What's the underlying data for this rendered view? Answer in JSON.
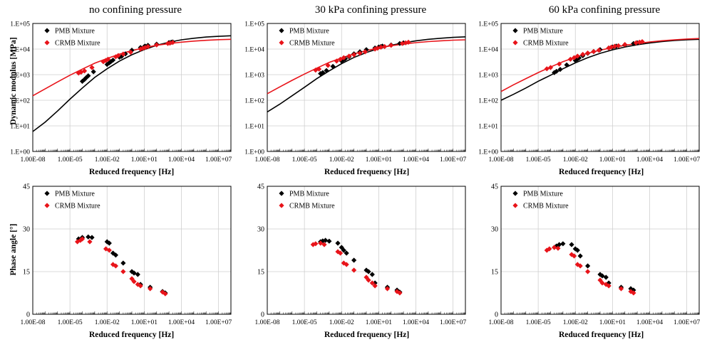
{
  "columns": [
    "no confining pressure",
    "30 kPa confining pressure",
    "60 kPa confining pressure"
  ],
  "legend": {
    "pmb": "PMB Mixture",
    "crmb": "CRMB Mixture"
  },
  "colors": {
    "pmb": "#000000",
    "crmb": "#e8141a",
    "grid": "#cfcfcf",
    "axis": "#000000"
  },
  "axes": {
    "xlabel": "Reduced frequency [Hz]",
    "ylabel_modulus": "Dynamic modulus [MPa]",
    "ylabel_phase": "Phase angle [°]",
    "x_ticks": [
      "1.00E-08",
      "1.00E-05",
      "1.00E-02",
      "1.00E+01",
      "1.00E+04",
      "1.00E+07"
    ],
    "y_ticks_modulus": [
      "1.E+00",
      "1.E+01",
      "1.E+02",
      "1.E+03",
      "1.E+04",
      "1.E+05"
    ],
    "y_ticks_phase": [
      "0",
      "15",
      "30",
      "45"
    ]
  },
  "chart_data": [
    {
      "type": "line",
      "title": "no confining pressure",
      "xlabel": "Reduced frequency [Hz]",
      "ylabel": "Dynamic modulus [MPa]",
      "xscale": "log",
      "yscale": "log",
      "xlim": [
        1e-08,
        100000000.0
      ],
      "ylim": [
        1,
        100000
      ],
      "grid": true,
      "legend_position": "top-left",
      "series": [
        {
          "name": "PMB Mixture",
          "kind": "curve",
          "x": [
            1e-08,
            1e-07,
            1e-06,
            1e-05,
            0.0001,
            0.001,
            0.01,
            0.1,
            1,
            10,
            100,
            1000,
            10000,
            100000,
            1000000,
            10000000,
            100000000
          ],
          "y": [
            6,
            14,
            38,
            110,
            300,
            780,
            1700,
            3400,
            6000,
            9500,
            14000,
            18500,
            23000,
            26500,
            29500,
            31500,
            33000
          ]
        },
        {
          "name": "CRMB Mixture",
          "kind": "curve",
          "x": [
            1e-08,
            1e-07,
            1e-06,
            1e-05,
            0.0001,
            0.001,
            0.01,
            0.1,
            1,
            10,
            100,
            1000,
            10000,
            100000,
            1000000,
            10000000,
            100000000
          ],
          "y": [
            150,
            280,
            520,
            950,
            1650,
            2800,
            4300,
            6300,
            8700,
            11300,
            14000,
            16400,
            18600,
            20500,
            22000,
            23200,
            24000
          ]
        },
        {
          "name": "PMB Mixture",
          "kind": "points",
          "x": [
            0.0001,
            0.00015,
            0.0002,
            0.0003,
            0.0008,
            0.01,
            0.015,
            0.02,
            0.03,
            0.1,
            0.15,
            0.3,
            1,
            5,
            10,
            12,
            20,
            100,
            1000,
            1500,
            2000
          ],
          "y": [
            550,
            650,
            750,
            900,
            1300,
            2500,
            2900,
            3200,
            3700,
            4800,
            5200,
            6500,
            9000,
            11500,
            12500,
            13000,
            14000,
            15500,
            18000,
            18500,
            19000
          ]
        },
        {
          "name": "CRMB Mixture",
          "kind": "points",
          "x": [
            5e-05,
            8e-05,
            0.00015,
            0.0006,
            0.005,
            0.008,
            0.012,
            0.05,
            0.08,
            0.2,
            0.8,
            5,
            8,
            12,
            20,
            100,
            800,
            1200,
            2000
          ],
          "y": [
            1150,
            1250,
            1400,
            1900,
            3200,
            3600,
            4000,
            5000,
            5600,
            6400,
            7500,
            10000,
            10800,
            11500,
            12500,
            14500,
            16500,
            17000,
            18000
          ]
        }
      ]
    },
    {
      "type": "line",
      "title": "30 kPa confining pressure",
      "xlabel": "Reduced frequency [Hz]",
      "ylabel": "",
      "xscale": "log",
      "yscale": "log",
      "xlim": [
        1e-08,
        100000000.0
      ],
      "ylim": [
        1,
        100000
      ],
      "grid": true,
      "legend_position": "top-left",
      "series": [
        {
          "name": "PMB Mixture",
          "kind": "curve",
          "x": [
            1e-08,
            1e-07,
            1e-06,
            1e-05,
            0.0001,
            0.001,
            0.01,
            0.1,
            1,
            10,
            100,
            1000,
            10000,
            100000,
            1000000,
            10000000,
            100000000
          ],
          "y": [
            35,
            70,
            150,
            320,
            700,
            1400,
            2700,
            4700,
            7300,
            10500,
            14000,
            17500,
            21000,
            24000,
            26500,
            28500,
            30000
          ]
        },
        {
          "name": "CRMB Mixture",
          "kind": "curve",
          "x": [
            1e-08,
            1e-07,
            1e-06,
            1e-05,
            0.0001,
            0.001,
            0.01,
            0.1,
            1,
            10,
            100,
            1000,
            10000,
            100000,
            1000000,
            10000000,
            100000000
          ],
          "y": [
            180,
            330,
            600,
            1050,
            1800,
            3000,
            4500,
            6500,
            8700,
            11000,
            13500,
            15700,
            17800,
            19600,
            21000,
            22200,
            23000
          ]
        },
        {
          "name": "PMB Mixture",
          "kind": "points",
          "x": [
            0.0002,
            0.0003,
            0.0006,
            0.002,
            0.01,
            0.015,
            0.02,
            0.04,
            0.1,
            0.3,
            1,
            5,
            10,
            15,
            20,
            100,
            500,
            1000
          ],
          "y": [
            1100,
            1200,
            1450,
            2100,
            3400,
            3900,
            4200,
            5000,
            6500,
            7800,
            9500,
            11000,
            12000,
            12500,
            13000,
            14500,
            16500,
            17500
          ]
        },
        {
          "name": "CRMB Mixture",
          "kind": "points",
          "x": [
            8e-05,
            0.00015,
            0.0008,
            0.004,
            0.008,
            0.015,
            0.04,
            0.1,
            0.3,
            0.8,
            5,
            8,
            15,
            30,
            100,
            800,
            1500,
            2500
          ],
          "y": [
            1500,
            1650,
            2300,
            3400,
            4000,
            4600,
            5300,
            6000,
            6900,
            7800,
            10000,
            10800,
            11800,
            12500,
            14000,
            16500,
            17500,
            18500
          ]
        }
      ]
    },
    {
      "type": "line",
      "title": "60 kPa confining pressure",
      "xlabel": "Reduced frequency [Hz]",
      "ylabel": "",
      "xscale": "log",
      "yscale": "log",
      "xlim": [
        1e-08,
        100000000.0
      ],
      "ylim": [
        1,
        100000
      ],
      "grid": true,
      "legend_position": "top-left",
      "series": [
        {
          "name": "PMB Mixture",
          "kind": "curve",
          "x": [
            1e-08,
            1e-07,
            1e-06,
            1e-05,
            0.0001,
            0.001,
            0.01,
            0.1,
            1,
            10,
            100,
            1000,
            10000,
            100000,
            1000000,
            10000000,
            100000000
          ],
          "y": [
            100,
            170,
            300,
            550,
            950,
            1700,
            2900,
            4600,
            6800,
            9300,
            12000,
            14700,
            17300,
            19600,
            21500,
            23000,
            24000
          ]
        },
        {
          "name": "CRMB Mixture",
          "kind": "curve",
          "x": [
            1e-08,
            1e-07,
            1e-06,
            1e-05,
            0.0001,
            0.001,
            0.01,
            0.1,
            1,
            10,
            100,
            1000,
            10000,
            100000,
            1000000,
            10000000,
            100000000
          ],
          "y": [
            220,
            400,
            700,
            1200,
            2000,
            3200,
            4800,
            6800,
            9000,
            11500,
            14000,
            16500,
            19000,
            21200,
            23000,
            24600,
            25800
          ]
        },
        {
          "name": "PMB Mixture",
          "kind": "points",
          "x": [
            0.0002,
            0.0003,
            0.0006,
            0.002,
            0.01,
            0.015,
            0.02,
            0.04,
            0.1,
            0.3,
            1,
            5,
            10,
            15,
            20,
            100,
            500,
            1000
          ],
          "y": [
            1200,
            1350,
            1600,
            2400,
            3600,
            4100,
            4500,
            5500,
            6800,
            8000,
            9500,
            11000,
            12000,
            12500,
            13000,
            14500,
            16500,
            17500
          ]
        },
        {
          "name": "CRMB Mixture",
          "kind": "points",
          "x": [
            5e-05,
            0.0001,
            0.0005,
            0.004,
            0.008,
            0.015,
            0.04,
            0.1,
            0.3,
            0.8,
            5,
            8,
            15,
            30,
            100,
            800,
            1500,
            2500
          ],
          "y": [
            1700,
            1900,
            2600,
            4000,
            4600,
            5300,
            6200,
            7000,
            8000,
            9000,
            11000,
            11800,
            12800,
            13500,
            15000,
            17500,
            18500,
            19500
          ]
        }
      ]
    },
    {
      "type": "scatter",
      "title": "",
      "xlabel": "Reduced frequency [Hz]",
      "ylabel": "Phase angle [°]",
      "xscale": "log",
      "xlim": [
        1e-08,
        100000000.0
      ],
      "ylim": [
        0,
        45
      ],
      "grid": true,
      "legend_position": "top-left",
      "series": [
        {
          "name": "PMB Mixture",
          "x": [
            5e-05,
            0.0001,
            0.0003,
            0.0006,
            0.01,
            0.015,
            0.03,
            0.05,
            0.2,
            1,
            1.5,
            3,
            5,
            30,
            300,
            500
          ],
          "y": [
            26.5,
            27,
            27.2,
            27,
            25.5,
            25,
            21.5,
            20.8,
            18,
            15,
            14.5,
            14,
            10.5,
            9.5,
            8,
            7.5
          ]
        },
        {
          "name": "CRMB Mixture",
          "x": [
            4e-05,
            7e-05,
            0.0001,
            0.0004,
            0.008,
            0.015,
            0.03,
            0.05,
            0.2,
            1,
            1.5,
            3,
            5,
            30,
            300,
            500
          ],
          "y": [
            25.5,
            26,
            26.5,
            25.5,
            23,
            22.5,
            17.5,
            17,
            15,
            12.5,
            11.5,
            10.5,
            10,
            9,
            7.8,
            7.2
          ]
        }
      ]
    },
    {
      "type": "scatter",
      "title": "",
      "xlabel": "Reduced frequency [Hz]",
      "ylabel": "",
      "xscale": "log",
      "xlim": [
        1e-08,
        100000000.0
      ],
      "ylim": [
        0,
        45
      ],
      "grid": true,
      "legend_position": "top-left",
      "series": [
        {
          "name": "PMB Mixture",
          "x": [
            0.0002,
            0.0003,
            0.0005,
            0.001,
            0.005,
            0.01,
            0.015,
            0.025,
            0.1,
            1,
            1.5,
            3,
            5,
            50,
            300,
            500
          ],
          "y": [
            25.5,
            25.8,
            26,
            25.7,
            25,
            23.5,
            22.5,
            21.5,
            19,
            15.5,
            15,
            14,
            11,
            9.5,
            8.5,
            7.8
          ]
        },
        {
          "name": "CRMB Mixture",
          "x": [
            5e-05,
            8e-05,
            0.0002,
            0.0004,
            0.005,
            0.008,
            0.015,
            0.025,
            0.1,
            1,
            1.5,
            3,
            5,
            50,
            300,
            500
          ],
          "y": [
            24.5,
            24.8,
            25,
            24.5,
            22,
            21.5,
            18,
            17.5,
            15.5,
            13,
            12,
            11,
            10,
            9,
            8,
            7.5
          ]
        }
      ]
    },
    {
      "type": "scatter",
      "title": "",
      "xlabel": "Reduced frequency [Hz]",
      "ylabel": "",
      "xscale": "log",
      "xlim": [
        1e-08,
        100000000.0
      ],
      "ylim": [
        0,
        45
      ],
      "grid": true,
      "legend_position": "top-left",
      "series": [
        {
          "name": "PMB Mixture",
          "x": [
            0.0002,
            0.0003,
            0.0005,
            0.001,
            0.005,
            0.01,
            0.015,
            0.025,
            0.1,
            1,
            1.5,
            3,
            5,
            50,
            300,
            500
          ],
          "y": [
            23.5,
            24,
            24.5,
            24.8,
            24.5,
            23,
            22.5,
            20.5,
            17,
            14,
            13.5,
            13,
            11,
            9.5,
            9,
            8.5
          ]
        },
        {
          "name": "CRMB Mixture",
          "x": [
            5e-05,
            8e-05,
            0.0002,
            0.0004,
            0.005,
            0.008,
            0.015,
            0.025,
            0.1,
            1,
            1.5,
            3,
            5,
            50,
            300,
            500
          ],
          "y": [
            22.5,
            23,
            23.5,
            23.2,
            21,
            20.5,
            17.5,
            17,
            15,
            12,
            11,
            10.5,
            10,
            9,
            8,
            7.5
          ]
        }
      ]
    }
  ]
}
